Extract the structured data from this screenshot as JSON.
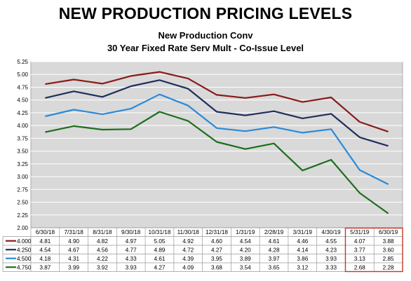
{
  "header": {
    "title": "NEW PRODUCTION PRICING LEVELS",
    "subtitle1": "New Production Conv",
    "subtitle2": "30 Year Fixed Rate Serv Mult - Co-Issue Level"
  },
  "chart_data": {
    "type": "line",
    "categories": [
      "6/30/18",
      "7/31/18",
      "8/31/18",
      "9/30/18",
      "10/31/18",
      "11/30/18",
      "12/31/18",
      "1/31/19",
      "2/28/19",
      "3/31/19",
      "4/30/19",
      "5/31/19",
      "6/30/19"
    ],
    "series": [
      {
        "name": "4.000",
        "color": "#8b1a1a",
        "values": [
          4.81,
          4.9,
          4.82,
          4.97,
          5.05,
          4.92,
          4.6,
          4.54,
          4.61,
          4.46,
          4.55,
          4.07,
          3.88
        ]
      },
      {
        "name": "4.250",
        "color": "#1f2f5c",
        "values": [
          4.54,
          4.67,
          4.56,
          4.77,
          4.89,
          4.72,
          4.27,
          4.2,
          4.28,
          4.14,
          4.23,
          3.77,
          3.6
        ]
      },
      {
        "name": "4.500",
        "color": "#2a8ad8",
        "values": [
          4.18,
          4.31,
          4.22,
          4.33,
          4.61,
          4.39,
          3.95,
          3.89,
          3.97,
          3.86,
          3.93,
          3.13,
          2.85
        ]
      },
      {
        "name": "4.750",
        "color": "#1d6e1d",
        "values": [
          3.87,
          3.99,
          3.92,
          3.93,
          4.27,
          4.09,
          3.68,
          3.54,
          3.65,
          3.12,
          3.33,
          2.68,
          2.28
        ]
      }
    ],
    "y_ticks": [
      "2.00",
      "2.25",
      "2.50",
      "2.75",
      "3.00",
      "3.25",
      "3.50",
      "3.75",
      "4.00",
      "4.25",
      "4.50",
      "4.75",
      "5.00",
      "5.25"
    ],
    "ylim": [
      2.0,
      5.25
    ],
    "grid": true,
    "plot_background": "#d9d9d9",
    "highlight_color": "#c0392b",
    "highlight_columns": [
      "5/31/19",
      "6/30/19"
    ],
    "legend": "data-table-bottom"
  }
}
